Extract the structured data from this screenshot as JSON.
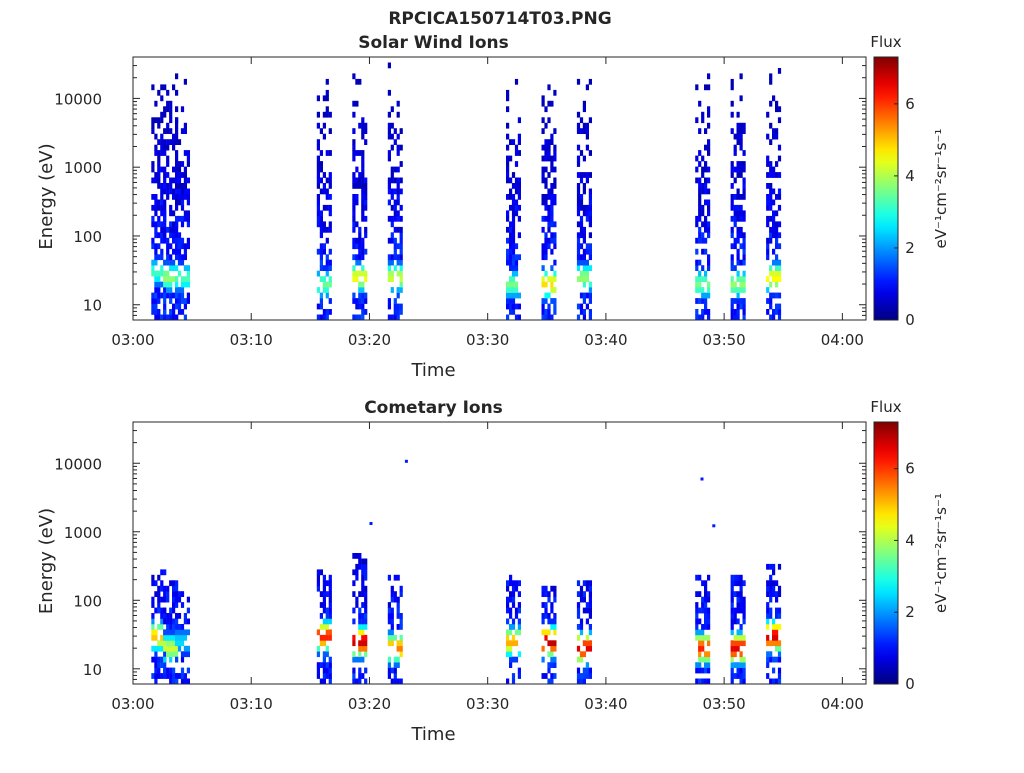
{
  "figure": {
    "title": "RPCICA150714T03.PNG"
  },
  "colors": {
    "axis": "#262626",
    "colormap": "jet"
  },
  "chart_data": [
    {
      "type": "heatmap",
      "title": "Solar Wind Ions",
      "xlabel": "Time",
      "ylabel": "Energy (eV)",
      "y_scale": "log",
      "xlim": [
        "03:00",
        "04:02"
      ],
      "ylim": [
        6,
        40000
      ],
      "x_ticks": [
        "03:00",
        "03:10",
        "03:20",
        "03:30",
        "03:40",
        "03:50",
        "04:00"
      ],
      "y_ticks": [
        "10",
        "100",
        "1000",
        "10000"
      ],
      "y_tick_values": [
        10,
        100,
        1000,
        10000
      ],
      "colorbar": {
        "label": "Flux",
        "unit_label": "eV⁻¹cm⁻²sr⁻¹s⁻¹",
        "ticks": [
          "0",
          "2",
          "4",
          "6"
        ],
        "range": [
          0,
          7.3
        ]
      },
      "scans": [
        {
          "t": "03:02",
          "e_max": 15000,
          "peak_energy": 30,
          "peak_flux": 3.2
        },
        {
          "t": "03:03",
          "e_max": 27000,
          "peak_energy": 25,
          "peak_flux": 3.8
        },
        {
          "t": "03:04",
          "e_max": 24000,
          "peak_energy": 25,
          "peak_flux": 3.3
        },
        {
          "t": "03:16",
          "e_max": 21000,
          "peak_energy": 20,
          "peak_flux": 3.5
        },
        {
          "t": "03:19",
          "e_max": 23000,
          "peak_energy": 25,
          "peak_flux": 4.5
        },
        {
          "t": "03:22",
          "e_max": 34000,
          "peak_energy": 25,
          "peak_flux": 4.2
        },
        {
          "t": "03:32",
          "e_max": 19000,
          "peak_energy": 20,
          "peak_flux": 3.6
        },
        {
          "t": "03:35",
          "e_max": 27000,
          "peak_energy": 20,
          "peak_flux": 4.8
        },
        {
          "t": "03:38",
          "e_max": 22000,
          "peak_energy": 25,
          "peak_flux": 3.8
        },
        {
          "t": "03:48",
          "e_max": 34000,
          "peak_energy": 20,
          "peak_flux": 3.6
        },
        {
          "t": "03:51",
          "e_max": 25000,
          "peak_energy": 20,
          "peak_flux": 3.8
        },
        {
          "t": "03:54",
          "e_max": 36000,
          "peak_energy": 25,
          "peak_flux": 4.6
        }
      ]
    },
    {
      "type": "heatmap",
      "title": "Cometary Ions",
      "xlabel": "Time",
      "ylabel": "Energy (eV)",
      "y_scale": "log",
      "xlim": [
        "03:00",
        "04:02"
      ],
      "ylim": [
        6,
        40000
      ],
      "x_ticks": [
        "03:00",
        "03:10",
        "03:20",
        "03:30",
        "03:40",
        "03:50",
        "04:00"
      ],
      "y_ticks": [
        "10",
        "100",
        "1000",
        "10000"
      ],
      "y_tick_values": [
        10,
        100,
        1000,
        10000
      ],
      "colorbar": {
        "label": "Flux",
        "unit_label": "eV⁻¹cm⁻²sr⁻¹s⁻¹",
        "ticks": [
          "0",
          "2",
          "4",
          "6"
        ],
        "range": [
          0,
          7.3
        ]
      },
      "scans": [
        {
          "t": "03:02",
          "e_max": 300,
          "peak_energy": 30,
          "peak_flux": 5.0
        },
        {
          "t": "03:03",
          "e_max": 200,
          "peak_energy": 20,
          "peak_flux": 4.2
        },
        {
          "t": "03:04",
          "e_max": 130,
          "peak_energy": 25,
          "peak_flux": 2.5
        },
        {
          "t": "03:16",
          "e_max": 300,
          "peak_energy": 30,
          "peak_flux": 6.2
        },
        {
          "t": "03:19",
          "e_max": 450,
          "peak_energy": 25,
          "peak_flux": 6.8
        },
        {
          "t": "03:22",
          "e_max": 220,
          "peak_energy": 20,
          "peak_flux": 5.5
        },
        {
          "t": "03:32",
          "e_max": 250,
          "peak_energy": 25,
          "peak_flux": 5.2
        },
        {
          "t": "03:35",
          "e_max": 150,
          "peak_energy": 25,
          "peak_flux": 6.9
        },
        {
          "t": "03:38",
          "e_max": 200,
          "peak_energy": 20,
          "peak_flux": 6.6
        },
        {
          "t": "03:48",
          "e_max": 250,
          "peak_energy": 20,
          "peak_flux": 6.2
        },
        {
          "t": "03:51",
          "e_max": 220,
          "peak_energy": 20,
          "peak_flux": 6.6
        },
        {
          "t": "03:54",
          "e_max": 330,
          "peak_energy": 30,
          "peak_flux": 6.7
        }
      ],
      "isolated_points": [
        {
          "t": "03:20",
          "e": 1300
        },
        {
          "t": "03:23",
          "e": 10500
        },
        {
          "t": "03:48",
          "e": 5800
        },
        {
          "t": "03:49",
          "e": 1200
        }
      ]
    }
  ]
}
